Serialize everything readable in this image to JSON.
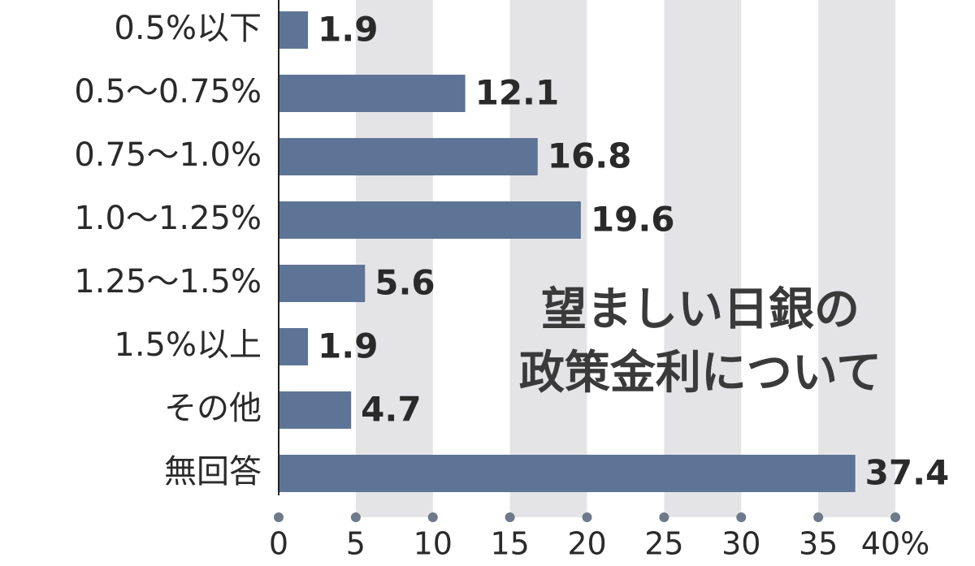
{
  "chart_data": {
    "type": "hbar",
    "title": [
      "望ましい日銀の",
      "政策金利について"
    ],
    "categories": [
      "0.5%以下",
      "0.5～0.75%",
      "0.75～1.0%",
      "1.0～1.25%",
      "1.25～1.5%",
      "1.5%以上",
      "その他",
      "無回答"
    ],
    "values": [
      1.9,
      12.1,
      16.8,
      19.6,
      5.6,
      1.9,
      4.7,
      37.4
    ],
    "color": "#5e7496",
    "xlim": [
      0,
      40
    ],
    "xticks": [
      0,
      5,
      10,
      15,
      20,
      25,
      30,
      35,
      {
        "value": 40,
        "label": "40%"
      }
    ],
    "bands": true
  }
}
